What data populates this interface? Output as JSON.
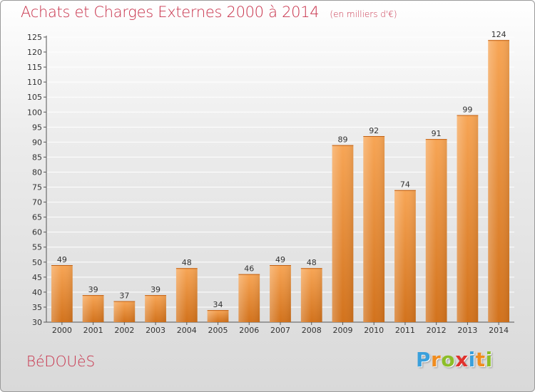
{
  "header": {
    "title": "Achats et Charges Externes 2000 à 2014",
    "unit": "(en milliers d'€)"
  },
  "footer": {
    "commune": "BéDOUèS",
    "logo": {
      "letters": [
        "P",
        "r",
        "o",
        "x",
        "i",
        "t",
        "i"
      ],
      "colors": [
        "#3aa0dc",
        "#f08c1e",
        "#8cbe28",
        "#e0322d",
        "#3aa0dc",
        "#f08c1e",
        "#8cbe28"
      ]
    }
  },
  "colors": {
    "title": "#c8324b",
    "bar_light": "#f7a555",
    "bar_dark": "#d2721c",
    "grid": "#ffffff",
    "axis": "#555555"
  },
  "chart_data": {
    "type": "bar",
    "title": "Achats et Charges Externes 2000 à 2014",
    "subtitle": "(en milliers d'€)",
    "categories": [
      "2000",
      "2001",
      "2002",
      "2003",
      "2004",
      "2005",
      "2006",
      "2007",
      "2008",
      "2009",
      "2010",
      "2011",
      "2012",
      "2013",
      "2014"
    ],
    "values": [
      49,
      39,
      37,
      39,
      48,
      34,
      46,
      49,
      48,
      89,
      92,
      74,
      91,
      99,
      124
    ],
    "ylim": [
      30,
      125
    ],
    "yticks": [
      30,
      35,
      40,
      45,
      50,
      55,
      60,
      65,
      70,
      75,
      80,
      85,
      90,
      95,
      100,
      105,
      110,
      115,
      120,
      125
    ],
    "grid": true,
    "data_labels": true
  }
}
